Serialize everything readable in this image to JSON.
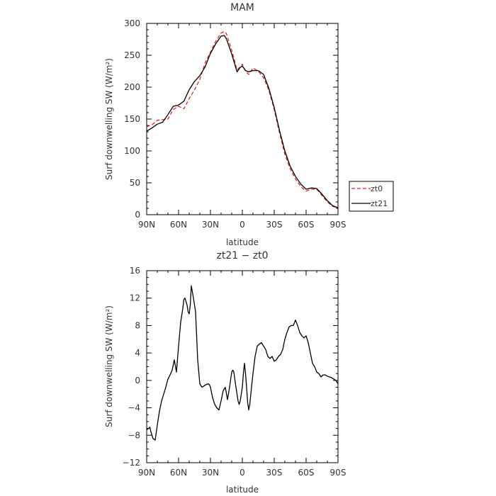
{
  "chart_data": [
    {
      "type": "line",
      "title": "MAM",
      "xlabel": "latitude",
      "ylabel": "Surf downwelling SW (W/m²)",
      "x_ticks": [
        "90N",
        "60N",
        "30N",
        "0",
        "30S",
        "60S",
        "90S"
      ],
      "x_tick_values": [
        90,
        60,
        30,
        0,
        -30,
        -60,
        -90
      ],
      "xlim": [
        90,
        -90
      ],
      "y_ticks": [
        "0",
        "50",
        "100",
        "150",
        "200",
        "250",
        "300"
      ],
      "y_tick_values": [
        0,
        50,
        100,
        150,
        200,
        250,
        300
      ],
      "ylim": [
        0,
        300
      ],
      "legend_position": "right",
      "series": [
        {
          "name": "zt0",
          "color": "#e8211d",
          "dash": "dashed",
          "x": [
            90,
            85,
            80,
            75,
            70,
            65,
            60,
            55,
            50,
            45,
            40,
            35,
            30,
            25,
            20,
            17,
            15,
            10,
            5,
            2,
            0,
            -3,
            -6,
            -10,
            -15,
            -20,
            -25,
            -30,
            -35,
            -40,
            -45,
            -50,
            -55,
            -60,
            -65,
            -70,
            -75,
            -80,
            -85,
            -90
          ],
          "y": [
            138,
            141,
            148,
            149,
            150,
            165,
            170,
            166,
            182,
            196,
            212,
            238,
            255,
            272,
            285,
            287,
            284,
            258,
            227,
            232,
            236,
            225,
            220,
            230,
            225,
            215,
            195,
            165,
            128,
            95,
            72,
            56,
            44,
            37,
            40,
            40,
            30,
            20,
            13,
            11
          ]
        },
        {
          "name": "zt21",
          "color": "#000000",
          "dash": "solid",
          "x": [
            90,
            85,
            80,
            75,
            70,
            65,
            60,
            55,
            50,
            45,
            40,
            35,
            30,
            25,
            20,
            17,
            15,
            10,
            5,
            2,
            0,
            -3,
            -6,
            -10,
            -15,
            -20,
            -25,
            -30,
            -35,
            -40,
            -45,
            -50,
            -55,
            -60,
            -65,
            -70,
            -75,
            -80,
            -85,
            -90
          ],
          "y": [
            131,
            136,
            142,
            145,
            157,
            170,
            172,
            178,
            196,
            209,
            218,
            232,
            253,
            268,
            280,
            281,
            276,
            252,
            224,
            231,
            233,
            226,
            224,
            226,
            226,
            220,
            198,
            168,
            132,
            100,
            76,
            60,
            48,
            40,
            42,
            41,
            32,
            22,
            14,
            11
          ]
        }
      ]
    },
    {
      "type": "line",
      "title": "zt21 − zt0",
      "xlabel": "latitude",
      "ylabel": "Surf downwelling SW (W/m²)",
      "x_ticks": [
        "90N",
        "60N",
        "30N",
        "0",
        "30S",
        "60S",
        "90S"
      ],
      "x_tick_values": [
        90,
        60,
        30,
        0,
        -30,
        -60,
        -90
      ],
      "xlim": [
        90,
        -90
      ],
      "y_ticks": [
        "−12",
        "−8",
        "−4",
        "0",
        "4",
        "8",
        "12",
        "16"
      ],
      "y_tick_values": [
        -12,
        -8,
        -4,
        0,
        4,
        8,
        12,
        16
      ],
      "ylim": [
        -12,
        16
      ],
      "series": [
        {
          "name": "",
          "color": "#000000",
          "dash": "solid",
          "x": [
            90,
            88,
            87,
            86,
            84,
            82,
            80,
            78,
            76,
            74,
            72,
            70,
            69,
            68,
            66,
            64,
            62,
            60,
            58,
            56,
            55,
            54,
            53,
            52,
            51,
            50,
            49,
            48,
            46,
            44,
            42,
            40,
            38,
            36,
            34,
            32,
            31,
            30,
            28,
            26,
            24,
            22,
            20,
            18,
            16,
            14,
            12,
            10,
            9,
            8,
            6,
            4,
            3,
            2,
            1,
            0,
            -1,
            -2,
            -3,
            -4,
            -5,
            -6,
            -7,
            -8,
            -10,
            -12,
            -14,
            -16,
            -18,
            -20,
            -22,
            -24,
            -26,
            -28,
            -30,
            -32,
            -34,
            -36,
            -38,
            -40,
            -42,
            -44,
            -46,
            -48,
            -50,
            -52,
            -54,
            -56,
            -58,
            -60,
            -62,
            -64,
            -66,
            -68,
            -70,
            -72,
            -74,
            -76,
            -78,
            -80,
            -82,
            -84,
            -86,
            -88,
            -90
          ],
          "y": [
            -7.2,
            -7.0,
            -6.8,
            -7.5,
            -8.5,
            -8.7,
            -6.5,
            -4.5,
            -3.0,
            -2.0,
            -1.0,
            0.2,
            0.5,
            0.8,
            1.5,
            3.0,
            1.2,
            5.0,
            8.5,
            10.5,
            11.8,
            12.0,
            11.5,
            11.0,
            10.0,
            9.7,
            11.0,
            13.8,
            12.0,
            10.0,
            3.0,
            -0.5,
            -1.0,
            -0.8,
            -0.6,
            -0.5,
            -0.6,
            -1.0,
            -2.5,
            -3.5,
            -4.0,
            -4.3,
            -3.0,
            -1.5,
            -1.0,
            -2.8,
            -1.0,
            1.2,
            1.5,
            1.2,
            -1.0,
            -3.0,
            -3.5,
            -3.0,
            -2.0,
            -1.0,
            1.0,
            2.5,
            1.0,
            -1.0,
            -3.2,
            -4.3,
            -3.5,
            -2.0,
            1.0,
            3.5,
            5.0,
            5.3,
            5.5,
            5.0,
            4.5,
            3.5,
            3.2,
            3.5,
            2.8,
            3.0,
            3.5,
            3.8,
            4.5,
            6.0,
            7.0,
            7.8,
            8.0,
            8.0,
            8.8,
            8.0,
            7.0,
            6.5,
            6.2,
            6.5,
            5.5,
            4.0,
            2.5,
            2.0,
            1.2,
            1.0,
            0.5,
            0.8,
            0.8,
            0.6,
            0.5,
            0.4,
            0.2,
            0.0,
            -0.5
          ]
        }
      ]
    }
  ]
}
